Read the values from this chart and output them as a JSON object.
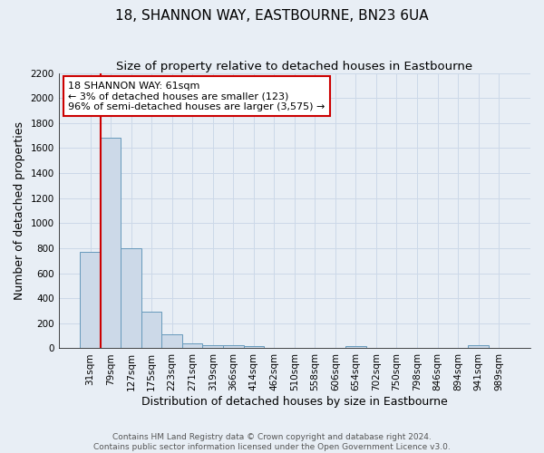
{
  "title": "18, SHANNON WAY, EASTBOURNE, BN23 6UA",
  "subtitle": "Size of property relative to detached houses in Eastbourne",
  "xlabel": "Distribution of detached houses by size in Eastbourne",
  "ylabel": "Number of detached properties",
  "categories": [
    "31sqm",
    "79sqm",
    "127sqm",
    "175sqm",
    "223sqm",
    "271sqm",
    "319sqm",
    "366sqm",
    "414sqm",
    "462sqm",
    "510sqm",
    "558sqm",
    "606sqm",
    "654sqm",
    "702sqm",
    "750sqm",
    "798sqm",
    "846sqm",
    "894sqm",
    "941sqm",
    "989sqm"
  ],
  "values": [
    770,
    1680,
    800,
    295,
    110,
    40,
    28,
    25,
    18,
    0,
    0,
    0,
    0,
    20,
    0,
    0,
    0,
    0,
    0,
    25,
    0
  ],
  "bar_color": "#ccd9e8",
  "bar_edge_color": "#6699bb",
  "vline_color": "#cc0000",
  "annotation_text": "18 SHANNON WAY: 61sqm\n← 3% of detached houses are smaller (123)\n96% of semi-detached houses are larger (3,575) →",
  "annotation_box_color": "#ffffff",
  "annotation_box_edge": "#cc0000",
  "ylim": [
    0,
    2200
  ],
  "yticks": [
    0,
    200,
    400,
    600,
    800,
    1000,
    1200,
    1400,
    1600,
    1800,
    2000,
    2200
  ],
  "grid_color": "#ccd8e8",
  "background_color": "#e8eef5",
  "footer": "Contains HM Land Registry data © Crown copyright and database right 2024.\nContains public sector information licensed under the Open Government Licence v3.0.",
  "title_fontsize": 11,
  "subtitle_fontsize": 9.5,
  "xlabel_fontsize": 9,
  "ylabel_fontsize": 9,
  "tick_fontsize": 7.5,
  "annotation_fontsize": 8,
  "footer_fontsize": 6.5
}
